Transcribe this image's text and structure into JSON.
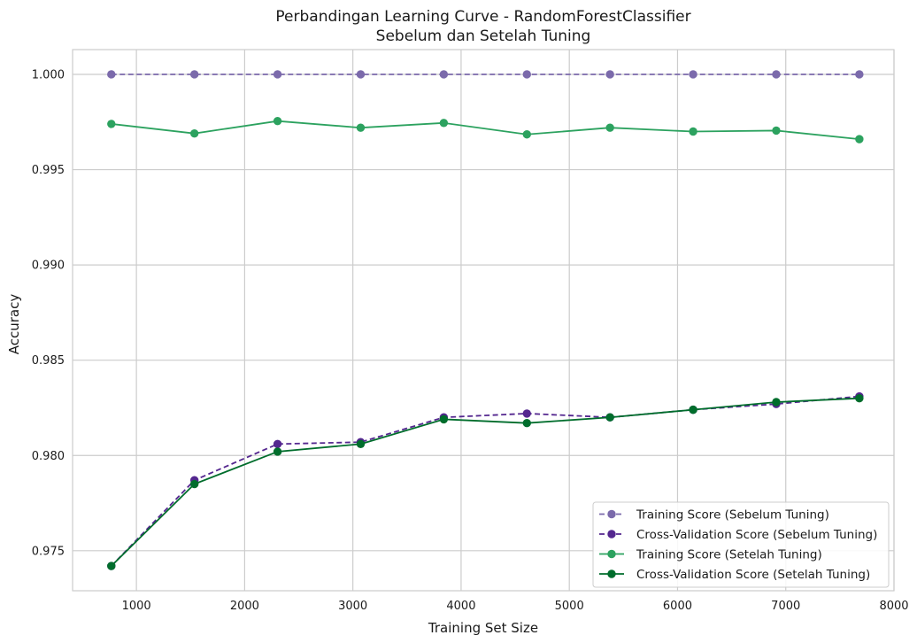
{
  "chart_data": {
    "type": "line",
    "title": "Perbandingan Learning Curve - RandomForestClassifier",
    "subtitle": "Sebelum dan Setelah Tuning",
    "xlabel": "Training Set Size",
    "ylabel": "Accuracy",
    "xlim": [
      410,
      8000
    ],
    "ylim": [
      0.9729,
      1.0013
    ],
    "x_ticks": [
      1000,
      2000,
      3000,
      4000,
      5000,
      6000,
      7000,
      8000
    ],
    "x_tick_labels": [
      "1000",
      "2000",
      "3000",
      "4000",
      "5000",
      "6000",
      "7000",
      "8000"
    ],
    "y_ticks": [
      0.975,
      0.98,
      0.985,
      0.99,
      0.995,
      1.0
    ],
    "y_tick_labels": [
      "0.975",
      "0.980",
      "0.985",
      "0.990",
      "0.995",
      "1.000"
    ],
    "grid": true,
    "legend_position": "bottom-right",
    "x": [
      768,
      1536,
      2304,
      3072,
      3840,
      4608,
      5376,
      6144,
      6912,
      7680
    ],
    "series": [
      {
        "name": "Training Score (Sebelum Tuning)",
        "color": "#7b6aab",
        "dashed": true,
        "values": [
          1.0,
          1.0,
          1.0,
          1.0,
          1.0,
          1.0,
          1.0,
          1.0,
          1.0,
          1.0
        ]
      },
      {
        "name": "Cross-Validation Score (Sebelum Tuning)",
        "color": "#54278f",
        "dashed": true,
        "values": [
          0.9742,
          0.9787,
          0.9806,
          0.9807,
          0.982,
          0.9822,
          0.982,
          0.9824,
          0.9827,
          0.9831
        ]
      },
      {
        "name": "Training Score (Setelah Tuning)",
        "color": "#2ca25f",
        "dashed": false,
        "values": [
          0.9974,
          0.9969,
          0.99755,
          0.9972,
          0.99745,
          0.99685,
          0.9972,
          0.997,
          0.99705,
          0.9966
        ]
      },
      {
        "name": "Cross-Validation Score (Setelah Tuning)",
        "color": "#006d2c",
        "dashed": false,
        "values": [
          0.9742,
          0.9785,
          0.9802,
          0.9806,
          0.9819,
          0.9817,
          0.982,
          0.9824,
          0.9828,
          0.983
        ]
      }
    ]
  }
}
